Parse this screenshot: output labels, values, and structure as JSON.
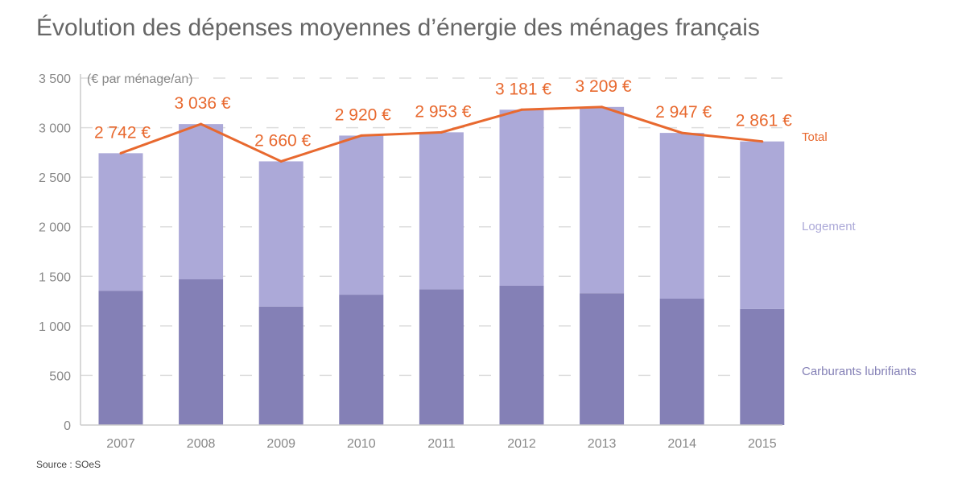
{
  "title": "Évolution des dépenses moyennes d’énergie des ménages français",
  "source": "Source : SOeS",
  "colors": {
    "carburants": "#8480b6",
    "logement": "#aca9d8",
    "total": "#e8692f",
    "axis": "#888888"
  },
  "chart_data": {
    "type": "bar",
    "stacked": true,
    "title": "Évolution des dépenses moyennes d’énergie des ménages français",
    "ylabel": "(€ par ménage/an)",
    "ylim": [
      0,
      3500
    ],
    "yticks": [
      0,
      500,
      1000,
      1500,
      2000,
      2500,
      3000,
      3500
    ],
    "ytick_labels": [
      "0",
      "500",
      "1 000",
      "1 500",
      "2 000",
      "2 500",
      "3 000",
      "3 500"
    ],
    "categories": [
      "2007",
      "2008",
      "2009",
      "2010",
      "2011",
      "2012",
      "2013",
      "2014",
      "2015"
    ],
    "series": [
      {
        "name": "Carburants lubrifiants",
        "values": [
          1355,
          1470,
          1195,
          1315,
          1370,
          1405,
          1330,
          1275,
          1170
        ]
      },
      {
        "name": "Logement",
        "values": [
          1387,
          1566,
          1465,
          1605,
          1583,
          1776,
          1879,
          1672,
          1691
        ]
      }
    ],
    "line": {
      "name": "Total",
      "values": [
        2742,
        3036,
        2660,
        2920,
        2953,
        3181,
        3209,
        2947,
        2861
      ],
      "labels": [
        "2 742 €",
        "3 036 €",
        "2 660 €",
        "2 920 €",
        "2 953 €",
        "3 181 €",
        "3 209 €",
        "2 947 €",
        "2 861 €"
      ]
    },
    "legend_position": "right",
    "grid": true
  }
}
